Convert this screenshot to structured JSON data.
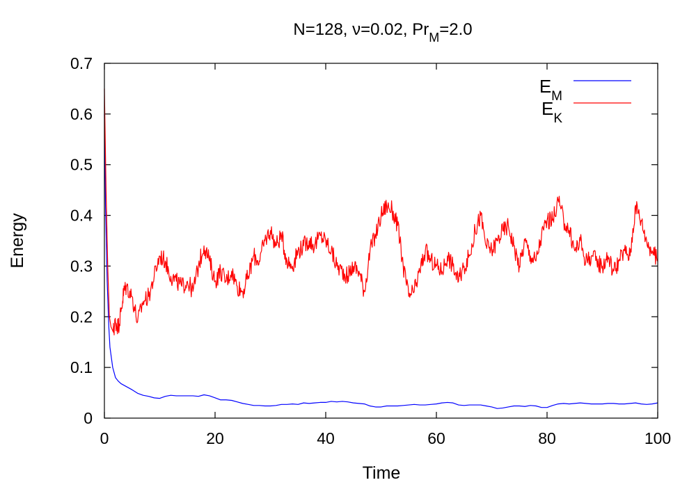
{
  "chart_data": {
    "type": "line",
    "title": {
      "parts": [
        {
          "text": "N=128, ",
          "sub": false
        },
        {
          "text": "ν",
          "sub": false
        },
        {
          "text": "=0.02, Pr",
          "sub": false
        },
        {
          "text": "M",
          "sub": true
        },
        {
          "text": "=2.0",
          "sub": false
        }
      ]
    },
    "xlabel": "Time",
    "ylabel": "Energy",
    "xlim": [
      0,
      100
    ],
    "ylim": [
      0,
      0.7
    ],
    "xticks": [
      0,
      20,
      40,
      60,
      80,
      100
    ],
    "xtick_labels": [
      "0",
      "20",
      "40",
      "60",
      "80",
      "100"
    ],
    "yticks": [
      0,
      0.1,
      0.2,
      0.3,
      0.4,
      0.5,
      0.6,
      0.7
    ],
    "ytick_labels": [
      "0",
      "0.1",
      "0.2",
      "0.3",
      "0.4",
      "0.5",
      "0.6",
      "0.7"
    ],
    "grid": false,
    "legend_position": "top-right",
    "series": [
      {
        "name": "E",
        "name_sub": "M",
        "color": "#0000ff",
        "x": [
          0,
          0.2,
          0.5,
          0.8,
          1,
          1.5,
          2,
          2.5,
          3,
          4,
          5,
          6,
          7,
          8,
          9,
          10,
          11,
          12,
          13,
          14,
          15,
          16,
          17,
          18,
          19,
          20,
          21,
          22,
          23,
          24,
          25,
          26,
          27,
          28,
          29,
          30,
          31,
          32,
          33,
          34,
          35,
          36,
          37,
          38,
          39,
          40,
          41,
          42,
          43,
          44,
          45,
          46,
          47,
          48,
          49,
          50,
          51,
          52,
          53,
          54,
          55,
          56,
          57,
          58,
          59,
          60,
          61,
          62,
          63,
          64,
          65,
          66,
          67,
          68,
          69,
          70,
          71,
          72,
          73,
          74,
          75,
          76,
          77,
          78,
          79,
          80,
          81,
          82,
          83,
          84,
          85,
          86,
          87,
          88,
          89,
          90,
          91,
          92,
          93,
          94,
          95,
          96,
          97,
          98,
          99,
          100
        ],
        "y": [
          0.6,
          0.42,
          0.27,
          0.18,
          0.14,
          0.1,
          0.08,
          0.073,
          0.068,
          0.062,
          0.056,
          0.049,
          0.045,
          0.043,
          0.04,
          0.039,
          0.043,
          0.045,
          0.044,
          0.044,
          0.044,
          0.044,
          0.043,
          0.046,
          0.044,
          0.04,
          0.036,
          0.036,
          0.035,
          0.032,
          0.029,
          0.027,
          0.025,
          0.025,
          0.024,
          0.024,
          0.025,
          0.027,
          0.027,
          0.028,
          0.027,
          0.03,
          0.029,
          0.03,
          0.031,
          0.031,
          0.033,
          0.032,
          0.033,
          0.032,
          0.03,
          0.029,
          0.028,
          0.024,
          0.022,
          0.022,
          0.024,
          0.024,
          0.024,
          0.025,
          0.026,
          0.027,
          0.026,
          0.026,
          0.027,
          0.028,
          0.03,
          0.031,
          0.03,
          0.026,
          0.025,
          0.026,
          0.026,
          0.026,
          0.024,
          0.022,
          0.019,
          0.02,
          0.022,
          0.024,
          0.024,
          0.023,
          0.025,
          0.024,
          0.021,
          0.021,
          0.025,
          0.028,
          0.029,
          0.028,
          0.029,
          0.03,
          0.029,
          0.028,
          0.028,
          0.028,
          0.029,
          0.029,
          0.028,
          0.028,
          0.029,
          0.03,
          0.028,
          0.027,
          0.028,
          0.03
        ]
      },
      {
        "name": "E",
        "name_sub": "K",
        "color": "#ff0000",
        "x": [
          0,
          0.3,
          0.6,
          0.9,
          1.2,
          1.6,
          2,
          2.5,
          3,
          3.5,
          4,
          5,
          6,
          7,
          8,
          9,
          10,
          11,
          12,
          13,
          14,
          15,
          16,
          17,
          18,
          19,
          20,
          21,
          22,
          23,
          24,
          25,
          26,
          27,
          28,
          29,
          30,
          31,
          32,
          33,
          34,
          35,
          36,
          37,
          38,
          39,
          40,
          41,
          42,
          43,
          44,
          45,
          46,
          47,
          48,
          49,
          50,
          51,
          52,
          53,
          54,
          55,
          56,
          57,
          58,
          59,
          60,
          61,
          62,
          63,
          64,
          65,
          66,
          67,
          68,
          69,
          70,
          71,
          72,
          73,
          74,
          75,
          76,
          77,
          78,
          79,
          80,
          81,
          82,
          83,
          84,
          85,
          86,
          87,
          88,
          89,
          90,
          91,
          92,
          93,
          94,
          95,
          96,
          97,
          98,
          99,
          100
        ],
        "y": [
          0.65,
          0.45,
          0.3,
          0.2,
          0.18,
          0.17,
          0.19,
          0.18,
          0.21,
          0.25,
          0.26,
          0.24,
          0.19,
          0.23,
          0.24,
          0.28,
          0.32,
          0.31,
          0.28,
          0.27,
          0.26,
          0.27,
          0.25,
          0.3,
          0.34,
          0.31,
          0.27,
          0.29,
          0.27,
          0.29,
          0.26,
          0.25,
          0.28,
          0.32,
          0.31,
          0.35,
          0.37,
          0.34,
          0.36,
          0.31,
          0.3,
          0.33,
          0.34,
          0.35,
          0.34,
          0.36,
          0.35,
          0.33,
          0.3,
          0.29,
          0.28,
          0.3,
          0.29,
          0.25,
          0.33,
          0.36,
          0.4,
          0.42,
          0.41,
          0.38,
          0.3,
          0.24,
          0.25,
          0.29,
          0.33,
          0.31,
          0.3,
          0.29,
          0.32,
          0.3,
          0.27,
          0.3,
          0.32,
          0.37,
          0.4,
          0.34,
          0.33,
          0.35,
          0.37,
          0.38,
          0.34,
          0.3,
          0.35,
          0.32,
          0.31,
          0.36,
          0.39,
          0.39,
          0.43,
          0.39,
          0.37,
          0.33,
          0.35,
          0.31,
          0.32,
          0.31,
          0.3,
          0.32,
          0.29,
          0.31,
          0.33,
          0.32,
          0.42,
          0.39,
          0.35,
          0.33,
          0.31
        ]
      }
    ]
  }
}
